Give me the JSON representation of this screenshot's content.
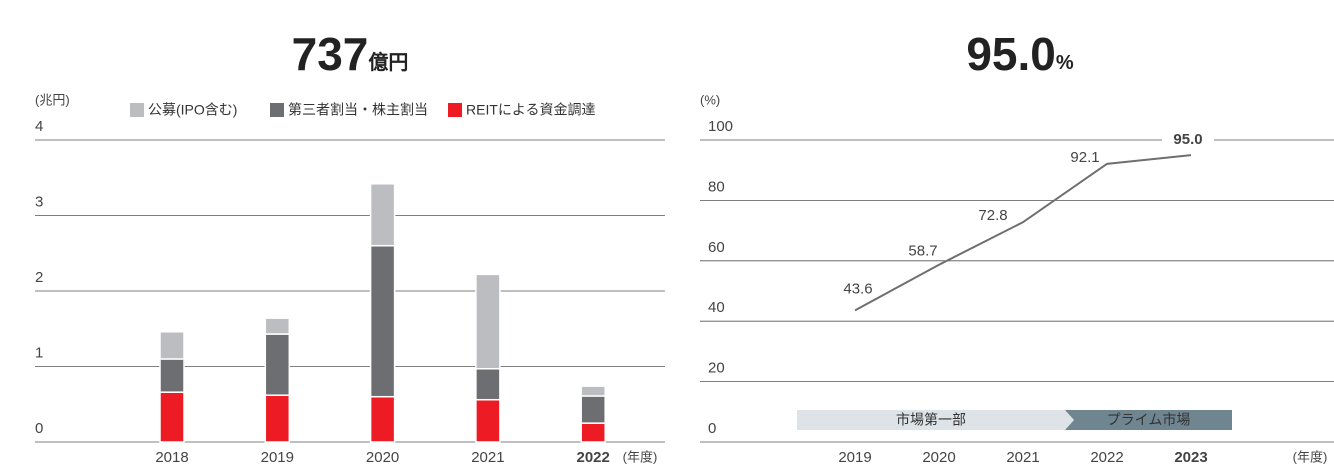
{
  "chart_data": [
    {
      "type": "bar",
      "stacked": true,
      "title": "737",
      "title_unit": "億円",
      "y_label": "(兆円)",
      "x_label": "(年度)",
      "categories": [
        "2018",
        "2019",
        "2020",
        "2021",
        "2022"
      ],
      "emphasized_category": 4,
      "series": [
        {
          "name": "REITによる資金調達",
          "color": "#ed1c24",
          "values": [
            0.66,
            0.62,
            0.6,
            0.56,
            0.25
          ]
        },
        {
          "name": "第三者割当・株主割当",
          "color": "#6d6e71",
          "values": [
            0.44,
            0.81,
            2.0,
            0.41,
            0.36
          ]
        },
        {
          "name": "公募(IPO含む)",
          "color": "#bcbdc0",
          "values": [
            0.36,
            0.21,
            0.82,
            1.25,
            0.13
          ]
        }
      ],
      "legend_order": [
        2,
        1,
        0
      ],
      "ylim": [
        0,
        4
      ],
      "yticks": [
        0,
        1,
        2,
        3,
        4
      ],
      "grid": true
    },
    {
      "type": "line",
      "title": "95.0",
      "title_unit": "%",
      "y_label": "(%)",
      "x_label": "(年度)",
      "categories": [
        "2019",
        "2020",
        "2021",
        "2022",
        "2023"
      ],
      "emphasized_category": 4,
      "series": [
        {
          "name": null,
          "color": "#6d6e71",
          "values": [
            43.6,
            58.7,
            72.8,
            92.1,
            95.0
          ],
          "value_labels": [
            "43.6",
            "58.7",
            "72.8",
            "92.1",
            "95.0"
          ]
        }
      ],
      "annotations": [
        {
          "text": "市場第一部",
          "color": "#dde3e7",
          "text_color": "#555"
        },
        {
          "text": "プライム市場",
          "color": "#6f8590",
          "text_color": "#fff"
        }
      ],
      "ylim": [
        0,
        100
      ],
      "yticks": [
        0,
        20,
        40,
        60,
        80,
        100
      ],
      "grid": true
    }
  ]
}
